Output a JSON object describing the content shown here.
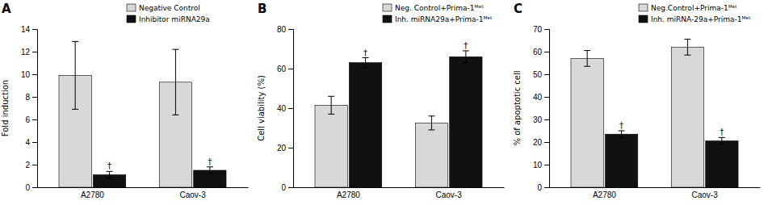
{
  "chart_data": [
    {
      "type": "bar",
      "title": "A",
      "y_label": "Fold induction",
      "categories": [
        "A2780",
        "Caov-3"
      ],
      "series": [
        {
          "name": "Negative Control",
          "color": "#d8d8d8",
          "values": [
            9.9,
            9.3
          ],
          "errors": [
            3.0,
            2.9
          ]
        },
        {
          "name": "Inhibitor miRNA29a",
          "color": "#111111",
          "values": [
            1.1,
            1.5
          ],
          "errors": [
            0.3,
            0.3
          ]
        }
      ],
      "annotations": [
        {
          "text": "†",
          "series": "Inhibitor miRNA29a",
          "category": "A2780"
        },
        {
          "text": "†",
          "series": "Inhibitor miRNA29a",
          "category": "Caov-3"
        }
      ],
      "ylim": [
        0,
        14
      ],
      "yticks": [
        0,
        2,
        4,
        6,
        8,
        10,
        12,
        14
      ],
      "legend": "upper right"
    },
    {
      "type": "bar",
      "title": "B",
      "y_label": "Cell viability (%)",
      "categories": [
        "A2780",
        "Caov-3"
      ],
      "series": [
        {
          "name": "Neg. Control+Prima-1ᴹᵉᵗ",
          "color": "#d8d8d8",
          "values": [
            41.5,
            32.5
          ],
          "errors": [
            4.5,
            3.5
          ]
        },
        {
          "name": "Inh. miRNA29a+Prima-1ᴹᵉᵗ",
          "color": "#111111",
          "values": [
            63.0,
            66.0
          ],
          "errors": [
            2.5,
            3.0
          ]
        }
      ],
      "annotations": [
        {
          "text": "†",
          "series": "Inh. miRNA29a+Prima-1ᴹᵉᵗ",
          "category": "A2780"
        },
        {
          "text": "†",
          "series": "Inh. miRNA29a+Prima-1ᴹᵉᵗ",
          "category": "Caov-3"
        }
      ],
      "ylim": [
        0,
        80
      ],
      "yticks": [
        0,
        20,
        40,
        60,
        80
      ],
      "legend": "upper right"
    },
    {
      "type": "bar",
      "title": "C",
      "y_label": "% of apoptotic cell",
      "categories": [
        "A2780",
        "Caov-3"
      ],
      "series": [
        {
          "name": "Neg.Control+Prima-1ᴹᵉᵗ",
          "color": "#d8d8d8",
          "values": [
            57.0,
            62.0
          ],
          "errors": [
            3.5,
            3.5
          ]
        },
        {
          "name": "Inh. miRNA-29a+Prima-1ᴹᵉᵗ",
          "color": "#111111",
          "values": [
            23.5,
            20.5
          ],
          "errors": [
            1.5,
            1.5
          ]
        }
      ],
      "annotations": [
        {
          "text": "†",
          "series": "Inh. miRNA-29a+Prima-1ᴹᵉᵗ",
          "category": "A2780"
        },
        {
          "text": "†",
          "series": "Inh. miRNA-29a+Prima-1ᴹᵉᵗ",
          "category": "Caov-3"
        }
      ],
      "ylim": [
        0,
        70
      ],
      "yticks": [
        0,
        10,
        20,
        30,
        40,
        50,
        60,
        70
      ],
      "legend": "upper right"
    }
  ]
}
